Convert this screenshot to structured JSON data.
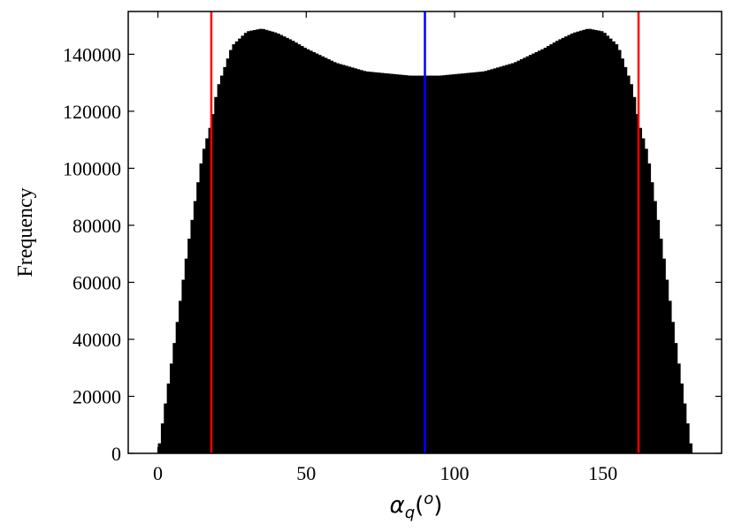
{
  "chart_data": {
    "type": "bar",
    "xlabel_main": "α",
    "xlabel_sub": "q",
    "xlabel_paren_open": "(",
    "xlabel_sup": "o",
    "xlabel_paren_close": ")",
    "ylabel": "Frequency",
    "xlim": [
      -10,
      190
    ],
    "ylim": [
      0,
      155000
    ],
    "xticks": [
      0,
      50,
      100,
      150
    ],
    "yticks": [
      0,
      20000,
      40000,
      60000,
      80000,
      100000,
      120000,
      140000
    ],
    "bar_color": "#000000",
    "histogram_points": {
      "x": [
        0,
        5,
        10,
        15,
        18,
        20,
        25,
        30,
        35,
        40,
        45,
        50,
        55,
        60,
        65,
        70,
        75,
        80,
        85,
        90,
        95,
        100,
        105,
        110,
        115,
        120,
        125,
        130,
        135,
        140,
        145,
        150,
        155,
        160,
        162,
        165,
        170,
        175,
        180
      ],
      "y": [
        0,
        35000,
        72000,
        105000,
        116000,
        128000,
        143000,
        148000,
        149000,
        147500,
        145000,
        142000,
        139500,
        137000,
        135500,
        134000,
        133500,
        133000,
        132500,
        132500,
        132500,
        133000,
        133500,
        134000,
        135500,
        137000,
        139500,
        142000,
        145000,
        147500,
        149000,
        148000,
        143000,
        128000,
        116000,
        105000,
        72000,
        35000,
        0
      ]
    },
    "vlines": [
      {
        "x": 18,
        "color": "#ff0000"
      },
      {
        "x": 90,
        "color": "#0000ff"
      },
      {
        "x": 162,
        "color": "#ff0000"
      }
    ]
  }
}
